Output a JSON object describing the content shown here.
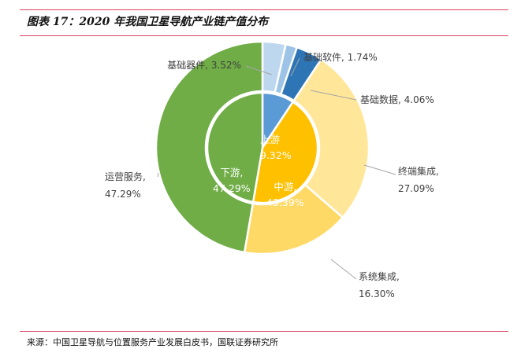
{
  "title": "图表 17：2020 年我国卫星导航产业链产值分布",
  "source": "来源：中国卫星导航与位置服务产业发展白皮书，国联证券研究所",
  "chart_data": {
    "type": "pie",
    "title": "图表 17：2020 年我国卫星导航产业链产值分布",
    "inner": [
      {
        "name": "上游",
        "value": 9.32,
        "label": "9.32%",
        "color": "#5b9bd5"
      },
      {
        "name": "中游",
        "value": 43.39,
        "label": "43.39%",
        "color": "#ffc000"
      },
      {
        "name": "下游",
        "value": 47.29,
        "label": "47.29%",
        "color": "#70ad47"
      }
    ],
    "outer": [
      {
        "name": "基础器件",
        "value": 3.52,
        "label": "3.52%",
        "color": "#bdd7ee"
      },
      {
        "name": "基础软件",
        "value": 1.74,
        "label": "1.74%",
        "color": "#9dc3e6"
      },
      {
        "name": "基础数据",
        "value": 4.06,
        "label": "4.06%",
        "color": "#2e75b6"
      },
      {
        "name": "终端集成",
        "value": 27.09,
        "label": "27.09%",
        "color": "#ffe699"
      },
      {
        "name": "系统集成",
        "value": 16.3,
        "label": "16.30%",
        "color": "#ffd966"
      },
      {
        "name": "运营服务",
        "value": 47.29,
        "label": "47.29%",
        "color": "#70ad47"
      }
    ]
  }
}
